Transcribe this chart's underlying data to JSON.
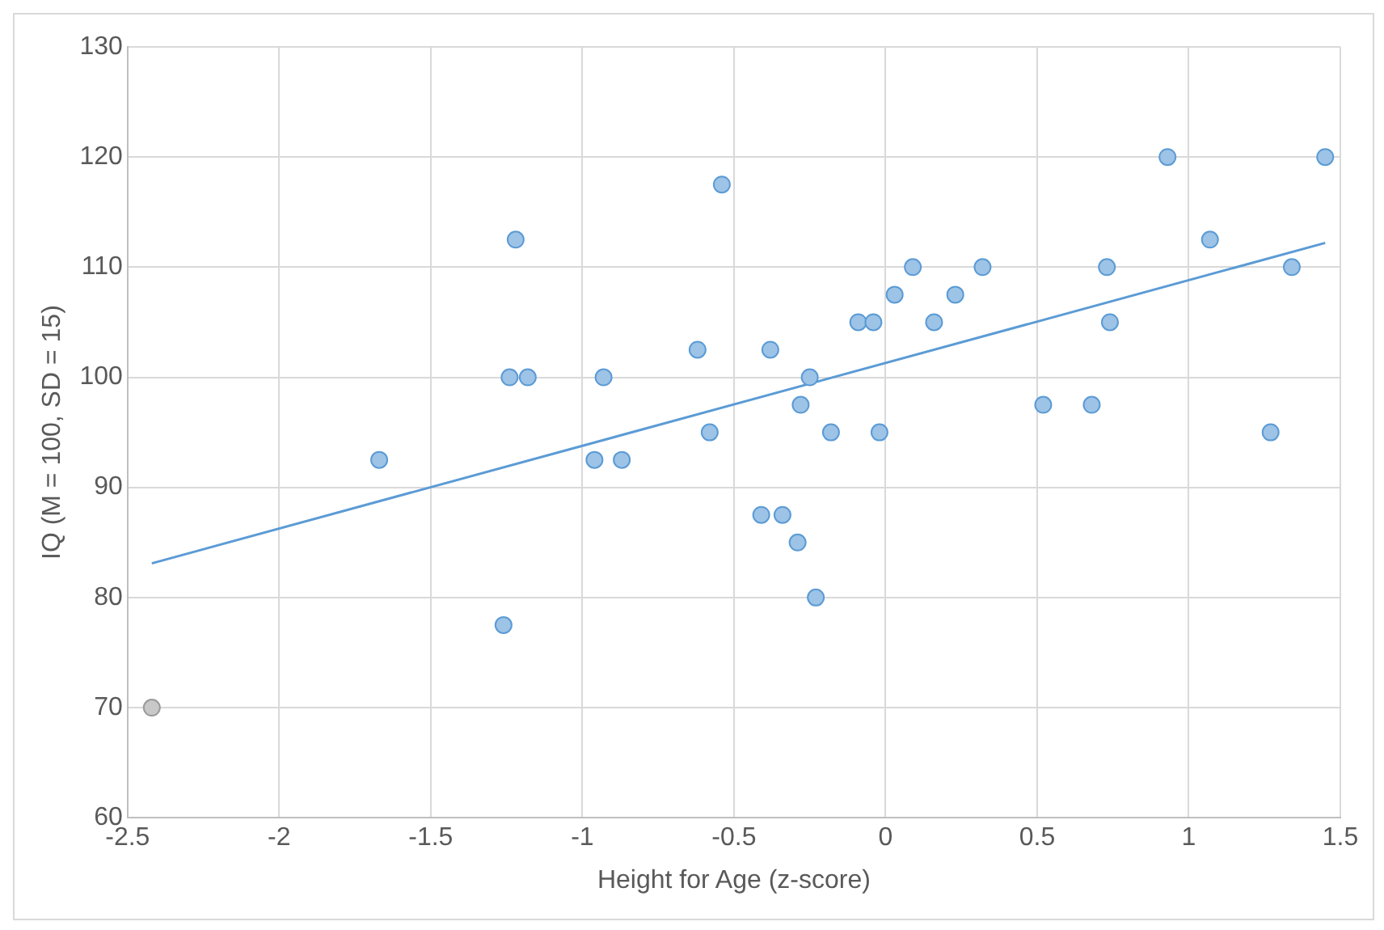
{
  "chart_data": {
    "type": "scatter",
    "xlabel": "Height for Age (z-score)",
    "ylabel": "IQ (M = 100, SD = 15)",
    "xlim": [
      -2.5,
      1.5
    ],
    "xticks": [
      -2.5,
      -2,
      -1.5,
      -1,
      -0.5,
      0,
      0.5,
      1,
      1.5
    ],
    "ylim": [
      60,
      130
    ],
    "yticks": [
      60,
      70,
      80,
      90,
      100,
      110,
      120,
      130
    ],
    "grid": true,
    "legend": false,
    "marker": "circle",
    "series": [
      {
        "type": "scatter",
        "color": "#9dc3e6",
        "x": [
          -2.42,
          -1.67,
          -1.26,
          -1.24,
          -1.22,
          -1.18,
          -0.96,
          -0.93,
          -0.87,
          -0.62,
          -0.58,
          -0.54,
          -0.41,
          -0.38,
          -0.34,
          -0.29,
          -0.28,
          -0.25,
          -0.23,
          -0.18,
          -0.09,
          -0.04,
          -0.02,
          0.03,
          0.09,
          0.16,
          0.23,
          0.32,
          0.52,
          0.68,
          0.73,
          0.74,
          0.93,
          1.07,
          1.27,
          1.34,
          1.45
        ],
        "values": [
          70,
          92.5,
          77.5,
          100,
          112.5,
          100,
          92.5,
          100,
          92.5,
          102.5,
          95,
          117.5,
          87.5,
          102.5,
          87.5,
          85,
          97.5,
          100,
          80,
          95,
          105,
          105,
          95,
          107.5,
          110,
          105,
          107.5,
          110,
          97.5,
          97.5,
          110,
          105,
          120,
          112.5,
          95,
          110,
          120
        ],
        "colors": [
          "#c8c8c8",
          "#9dc3e6",
          "#9dc3e6",
          "#9dc3e6",
          "#9dc3e6",
          "#9dc3e6",
          "#9dc3e6",
          "#9dc3e6",
          "#9dc3e6",
          "#9dc3e6",
          "#9dc3e6",
          "#9dc3e6",
          "#9dc3e6",
          "#9dc3e6",
          "#9dc3e6",
          "#9dc3e6",
          "#9dc3e6",
          "#9dc3e6",
          "#9dc3e6",
          "#9dc3e6",
          "#9dc3e6",
          "#9dc3e6",
          "#9dc3e6",
          "#9dc3e6",
          "#9dc3e6",
          "#9dc3e6",
          "#9dc3e6",
          "#9dc3e6",
          "#9dc3e6",
          "#9dc3e6",
          "#9dc3e6",
          "#9dc3e6",
          "#9dc3e6",
          "#9dc3e6",
          "#9dc3e6",
          "#9dc3e6",
          "#9dc3e6"
        ]
      },
      {
        "type": "line",
        "color": "#5b9bd5",
        "marker": "none",
        "x": [
          -2.42,
          1.45
        ],
        "values": [
          83.1,
          112.2
        ]
      }
    ]
  }
}
